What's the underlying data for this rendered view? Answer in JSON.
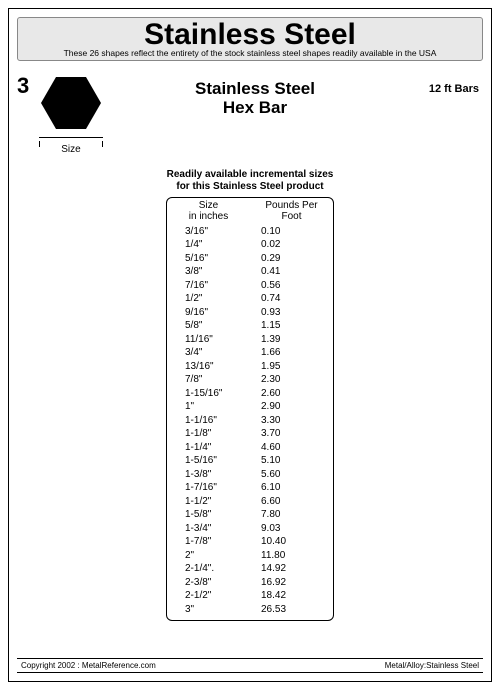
{
  "header": {
    "title": "Stainless Steel",
    "subtitle": "These 26 shapes reflect the entirety of the stock stainless steel shapes readily available in the USA"
  },
  "shape": {
    "number": "3",
    "size_label": "Size",
    "fill_color": "#000000"
  },
  "product": {
    "title_line1": "Stainless Steel",
    "title_line2": "Hex Bar",
    "bar_length": "12 ft Bars"
  },
  "table": {
    "caption_line1": "Readily available incremental sizes",
    "caption_line2": "for this Stainless Steel product",
    "col1_line1": "Size",
    "col1_line2": "in inches",
    "col2_line1": "Pounds Per",
    "col2_line2": "Foot",
    "rows": [
      {
        "size": "3/16\"",
        "ppf": "0.10"
      },
      {
        "size": "1/4\"",
        "ppf": "0.02"
      },
      {
        "size": "5/16\"",
        "ppf": "0.29"
      },
      {
        "size": "3/8\"",
        "ppf": "0.41"
      },
      {
        "size": "7/16\"",
        "ppf": "0.56"
      },
      {
        "size": "1/2\"",
        "ppf": "0.74"
      },
      {
        "size": "9/16\"",
        "ppf": "0.93"
      },
      {
        "size": "5/8\"",
        "ppf": "1.15"
      },
      {
        "size": "11/16\"",
        "ppf": "1.39"
      },
      {
        "size": "3/4\"",
        "ppf": "1.66"
      },
      {
        "size": "13/16\"",
        "ppf": "1.95"
      },
      {
        "size": "7/8\"",
        "ppf": "2.30"
      },
      {
        "size": "1-15/16\"",
        "ppf": "2.60"
      },
      {
        "size": "1\"",
        "ppf": "2.90"
      },
      {
        "size": "1-1/16\"",
        "ppf": "3.30"
      },
      {
        "size": "1-1/8\"",
        "ppf": "3.70"
      },
      {
        "size": "1-1/4\"",
        "ppf": "4.60"
      },
      {
        "size": "1-5/16\"",
        "ppf": "5.10"
      },
      {
        "size": "1-3/8\"",
        "ppf": "5.60"
      },
      {
        "size": "1-7/16\"",
        "ppf": "6.10"
      },
      {
        "size": "1-1/2\"",
        "ppf": "6.60"
      },
      {
        "size": "1-5/8\"",
        "ppf": "7.80"
      },
      {
        "size": "1-3/4\"",
        "ppf": "9.03"
      },
      {
        "size": "1-7/8\"",
        "ppf": "10.40"
      },
      {
        "size": "2\"",
        "ppf": "11.80"
      },
      {
        "size": "2-1/4\".",
        "ppf": "14.92"
      },
      {
        "size": "2-3/8\"",
        "ppf": "16.92"
      },
      {
        "size": "2-1/2\"",
        "ppf": "18.42"
      },
      {
        "size": "3\"",
        "ppf": "26.53"
      }
    ]
  },
  "footer": {
    "left": "Copyright 2002 : MetalReference.com",
    "right": "Metal/Alloy:Stainless Steel"
  }
}
